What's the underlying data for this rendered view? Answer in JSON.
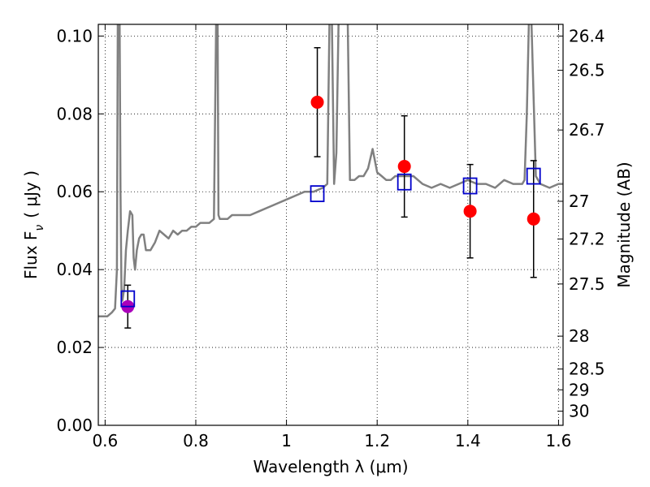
{
  "chart_data": {
    "type": "scatter",
    "xlabel": "Wavelength  λ (μm)",
    "ylabel": "Flux  F",
    "ylabel_sub": "ν",
    "ylabel_unit": "( μJy )",
    "right_ylabel": "Magnitude (AB)",
    "xlim": [
      0.585,
      1.61
    ],
    "ylim": [
      0.0,
      0.103
    ],
    "grid": true,
    "x_ticks": [
      {
        "value": 0.6,
        "label": "0.6"
      },
      {
        "value": 0.8,
        "label": "0.8"
      },
      {
        "value": 1.0,
        "label": "1"
      },
      {
        "value": 1.2,
        "label": "1.2"
      },
      {
        "value": 1.4,
        "label": "1.4"
      },
      {
        "value": 1.6,
        "label": "1.6"
      }
    ],
    "y_ticks": [
      {
        "value": 0.0,
        "label": "0.00"
      },
      {
        "value": 0.02,
        "label": "0.02"
      },
      {
        "value": 0.04,
        "label": "0.04"
      },
      {
        "value": 0.06,
        "label": "0.06"
      },
      {
        "value": 0.08,
        "label": "0.08"
      },
      {
        "value": 0.1,
        "label": "0.10"
      }
    ],
    "magnitude_ticks": [
      "26.4",
      "26.5",
      "26.7",
      "27",
      "27.2",
      "27.5",
      "28",
      "28.5",
      "29",
      "30"
    ],
    "series": [
      {
        "kind": "line",
        "color": "#808080",
        "x": [
          0.585,
          0.595,
          0.605,
          0.615,
          0.622,
          0.626,
          0.628,
          0.632,
          0.634,
          0.636,
          0.638,
          0.642,
          0.646,
          0.65,
          0.655,
          0.66,
          0.663,
          0.666,
          0.67,
          0.675,
          0.68,
          0.685,
          0.69,
          0.7,
          0.71,
          0.72,
          0.73,
          0.74,
          0.75,
          0.76,
          0.77,
          0.78,
          0.79,
          0.8,
          0.81,
          0.82,
          0.83,
          0.84,
          0.845,
          0.848,
          0.85,
          0.853,
          0.86,
          0.87,
          0.88,
          0.9,
          0.92,
          0.94,
          0.96,
          0.98,
          1.0,
          1.02,
          1.04,
          1.06,
          1.08,
          1.09,
          1.095,
          1.1,
          1.105,
          1.11,
          1.115,
          1.12,
          1.125,
          1.13,
          1.135,
          1.14,
          1.15,
          1.16,
          1.17,
          1.18,
          1.19,
          1.2,
          1.21,
          1.22,
          1.23,
          1.24,
          1.26,
          1.28,
          1.3,
          1.32,
          1.34,
          1.36,
          1.38,
          1.4,
          1.42,
          1.44,
          1.46,
          1.48,
          1.5,
          1.51,
          1.52,
          1.525,
          1.53,
          1.535,
          1.54,
          1.55,
          1.56,
          1.58,
          1.6,
          1.61
        ],
        "y": [
          0.028,
          0.028,
          0.028,
          0.029,
          0.03,
          0.04,
          0.105,
          0.105,
          0.06,
          0.035,
          0.032,
          0.035,
          0.045,
          0.05,
          0.055,
          0.054,
          0.043,
          0.04,
          0.045,
          0.048,
          0.049,
          0.049,
          0.045,
          0.045,
          0.047,
          0.05,
          0.049,
          0.048,
          0.05,
          0.049,
          0.05,
          0.05,
          0.051,
          0.051,
          0.052,
          0.052,
          0.052,
          0.053,
          0.105,
          0.105,
          0.054,
          0.053,
          0.053,
          0.053,
          0.054,
          0.054,
          0.054,
          0.055,
          0.056,
          0.057,
          0.058,
          0.059,
          0.06,
          0.06,
          0.061,
          0.062,
          0.105,
          0.105,
          0.062,
          0.07,
          0.105,
          0.105,
          0.105,
          0.105,
          0.105,
          0.063,
          0.063,
          0.064,
          0.064,
          0.066,
          0.071,
          0.065,
          0.064,
          0.063,
          0.063,
          0.064,
          0.064,
          0.064,
          0.062,
          0.061,
          0.062,
          0.061,
          0.062,
          0.063,
          0.062,
          0.062,
          0.061,
          0.063,
          0.062,
          0.062,
          0.062,
          0.063,
          0.08,
          0.105,
          0.105,
          0.064,
          0.062,
          0.061,
          0.062,
          0.062
        ]
      },
      {
        "kind": "points-errorbar",
        "color": "#ff0000",
        "marker": "circle",
        "points": [
          {
            "x": 1.068,
            "y": 0.083,
            "lo": 0.069,
            "hi": 0.097
          },
          {
            "x": 1.26,
            "y": 0.0665,
            "lo": 0.0535,
            "hi": 0.0795
          },
          {
            "x": 1.405,
            "y": 0.055,
            "lo": 0.043,
            "hi": 0.067
          },
          {
            "x": 1.545,
            "y": 0.053,
            "lo": 0.038,
            "hi": 0.068
          }
        ]
      },
      {
        "kind": "points-errorbar",
        "color": "#aa00bb",
        "marker": "circle",
        "points": [
          {
            "x": 0.65,
            "y": 0.0305,
            "lo": 0.025,
            "hi": 0.036
          }
        ]
      },
      {
        "kind": "points",
        "color": "#0000cc",
        "marker": "open-square",
        "points": [
          {
            "x": 0.65,
            "y": 0.0325
          },
          {
            "x": 1.068,
            "y": 0.0595
          },
          {
            "x": 1.26,
            "y": 0.0625
          },
          {
            "x": 1.405,
            "y": 0.0615
          },
          {
            "x": 1.545,
            "y": 0.064
          }
        ]
      }
    ]
  }
}
